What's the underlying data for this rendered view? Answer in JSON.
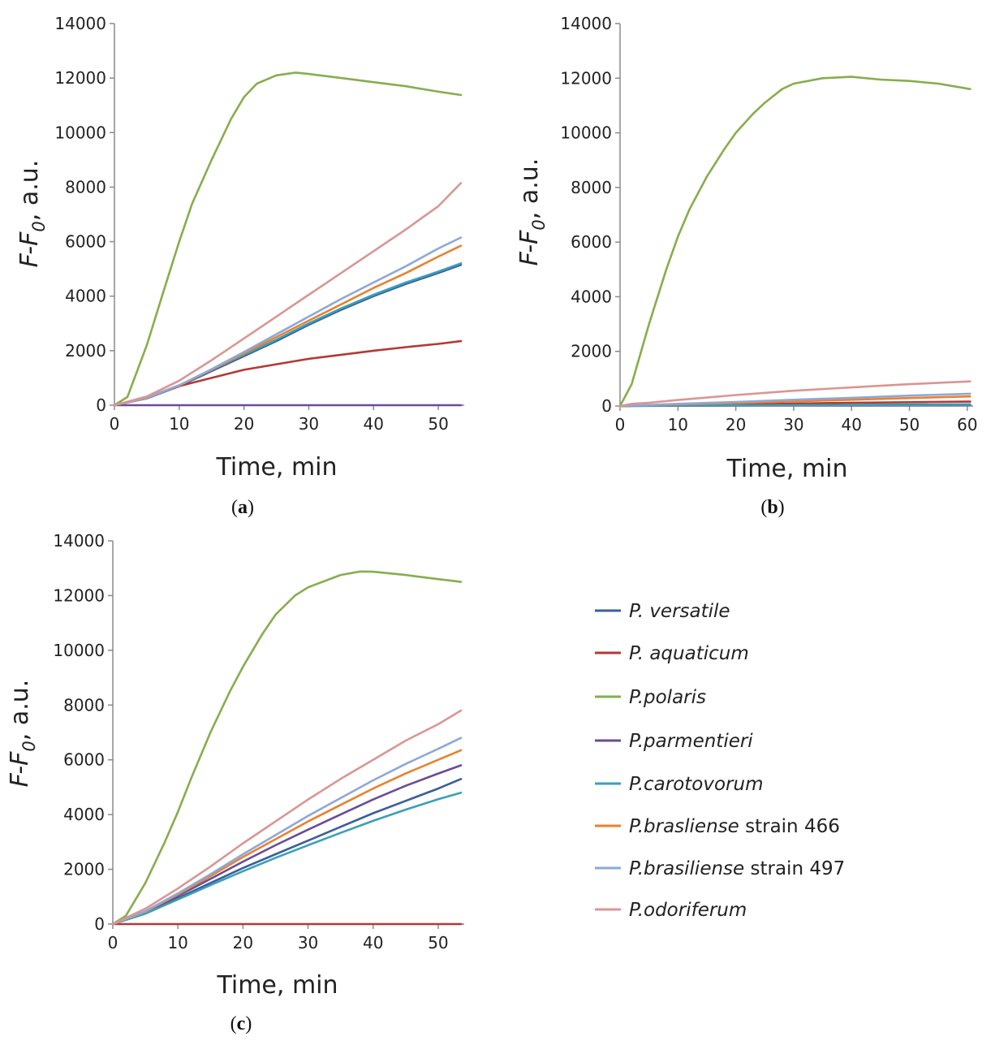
{
  "legend": [
    {
      "name_italic": "P. versatile",
      "suffix": "",
      "color": "#3a5f9a"
    },
    {
      "name_italic": "P. aquaticum",
      "suffix": "",
      "color": "#b23a36"
    },
    {
      "name_italic": "P.polaris",
      "suffix": "",
      "color": "#86ae4c"
    },
    {
      "name_italic": "P.parmentieri",
      "suffix": "",
      "color": "#6b4c96"
    },
    {
      "name_italic": "P.carotovorum",
      "suffix": "",
      "color": "#3aa0b8"
    },
    {
      "name_italic": "P.brasliense",
      "suffix": " strain 466",
      "color": "#e8822e"
    },
    {
      "name_italic": "P.brasiliense",
      "suffix": " strain 497",
      "color": "#8ea8d6"
    },
    {
      "name_italic": "P.odoriferum",
      "suffix": "",
      "color": "#d99694"
    }
  ],
  "axes": {
    "ylabel_main": "F-F",
    "ylabel_sub": "0",
    "ylabel_rest": ", a.u.",
    "xlabel": "Time, min"
  },
  "chart_data": [
    {
      "type": "line",
      "panel": "a",
      "panel_label": "a",
      "xlim": [
        0,
        54
      ],
      "ylim": [
        0,
        14000
      ],
      "xticks": [
        0,
        10,
        20,
        30,
        40,
        50
      ],
      "yticks": [
        0,
        2000,
        4000,
        6000,
        8000,
        10000,
        12000,
        14000
      ],
      "xlabel": "Time, min",
      "ylabel": "F-F0, a.u.",
      "series": [
        {
          "name": "P. versatile",
          "color": "#3a5f9a",
          "x": [
            0,
            5,
            10,
            15,
            20,
            25,
            30,
            35,
            40,
            45,
            50,
            53.5
          ],
          "y": [
            0,
            250,
            700,
            1250,
            1800,
            2350,
            2950,
            3500,
            4000,
            4450,
            4850,
            5150
          ]
        },
        {
          "name": "P. aquaticum",
          "color": "#b23a36",
          "x": [
            0,
            5,
            10,
            15,
            20,
            25,
            30,
            35,
            40,
            45,
            50,
            53.5
          ],
          "y": [
            0,
            280,
            700,
            1000,
            1300,
            1500,
            1700,
            1850,
            2000,
            2130,
            2250,
            2350
          ]
        },
        {
          "name": "P.polaris",
          "color": "#86ae4c",
          "x": [
            0,
            2,
            5,
            8,
            10,
            12,
            15,
            18,
            20,
            22,
            25,
            28,
            30,
            35,
            40,
            45,
            50,
            53.5
          ],
          "y": [
            0,
            300,
            2200,
            4500,
            6000,
            7400,
            9000,
            10500,
            11300,
            11800,
            12100,
            12200,
            12150,
            12000,
            11850,
            11700,
            11500,
            11380
          ]
        },
        {
          "name": "P.parmentieri",
          "color": "#6b4c96",
          "x": [
            0,
            53.5
          ],
          "y": [
            0,
            0
          ]
        },
        {
          "name": "P.carotovorum",
          "color": "#3aa0b8",
          "x": [
            0,
            5,
            10,
            15,
            20,
            25,
            30,
            35,
            40,
            45,
            50,
            53.5
          ],
          "y": [
            0,
            280,
            730,
            1300,
            1850,
            2400,
            3000,
            3550,
            4050,
            4500,
            4900,
            5200
          ]
        },
        {
          "name": "P.brasliense strain 466",
          "color": "#e8822e",
          "x": [
            0,
            5,
            10,
            15,
            20,
            25,
            30,
            35,
            40,
            45,
            50,
            53.5
          ],
          "y": [
            0,
            260,
            720,
            1300,
            1900,
            2500,
            3100,
            3700,
            4300,
            4850,
            5450,
            5850
          ]
        },
        {
          "name": "P.brasiliense strain 497",
          "color": "#8ea8d6",
          "x": [
            0,
            5,
            10,
            15,
            20,
            25,
            30,
            35,
            40,
            45,
            50,
            53.5
          ],
          "y": [
            0,
            270,
            730,
            1320,
            1950,
            2600,
            3250,
            3900,
            4500,
            5100,
            5750,
            6150
          ]
        },
        {
          "name": "P.odoriferum",
          "color": "#d99694",
          "x": [
            0,
            5,
            10,
            15,
            20,
            25,
            30,
            35,
            40,
            45,
            50,
            53.5
          ],
          "y": [
            0,
            320,
            900,
            1650,
            2450,
            3250,
            4050,
            4850,
            5650,
            6450,
            7300,
            8150
          ]
        }
      ]
    },
    {
      "type": "line",
      "panel": "b",
      "panel_label": "b",
      "xlim": [
        0,
        61
      ],
      "ylim": [
        0,
        14000
      ],
      "xticks": [
        0,
        10,
        20,
        30,
        40,
        50,
        60
      ],
      "yticks": [
        0,
        2000,
        4000,
        6000,
        8000,
        10000,
        12000,
        14000
      ],
      "xlabel": "Time, min",
      "ylabel": "F-F0, a.u.",
      "series": [
        {
          "name": "P. versatile",
          "color": "#3a5f9a",
          "x": [
            0,
            10,
            20,
            30,
            40,
            50,
            60.5
          ],
          "y": [
            0,
            20,
            30,
            40,
            45,
            50,
            55
          ]
        },
        {
          "name": "P. aquaticum",
          "color": "#b23a36",
          "x": [
            0,
            10,
            20,
            30,
            40,
            50,
            60.5
          ],
          "y": [
            0,
            30,
            60,
            90,
            120,
            140,
            160
          ]
        },
        {
          "name": "P.polaris",
          "color": "#86ae4c",
          "x": [
            0,
            2,
            5,
            8,
            10,
            12,
            15,
            18,
            20,
            23,
            25,
            28,
            30,
            35,
            40,
            45,
            50,
            55,
            60.5
          ],
          "y": [
            0,
            800,
            3000,
            5000,
            6200,
            7200,
            8400,
            9400,
            10000,
            10700,
            11100,
            11600,
            11800,
            12000,
            12050,
            11950,
            11900,
            11800,
            11600
          ]
        },
        {
          "name": "P.parmentieri",
          "color": "#6b4c96",
          "x": [
            0,
            10,
            20,
            30,
            40,
            50,
            60.5
          ],
          "y": [
            0,
            10,
            15,
            20,
            20,
            25,
            30
          ]
        },
        {
          "name": "P.carotovorum",
          "color": "#3aa0b8",
          "x": [
            0,
            10,
            20,
            30,
            40,
            50,
            60.5
          ],
          "y": [
            0,
            15,
            25,
            30,
            35,
            40,
            45
          ]
        },
        {
          "name": "P.brasliense strain 466",
          "color": "#e8822e",
          "x": [
            0,
            10,
            20,
            30,
            40,
            50,
            60.5
          ],
          "y": [
            0,
            60,
            110,
            170,
            230,
            290,
            350
          ]
        },
        {
          "name": "P.brasiliense strain 497",
          "color": "#8ea8d6",
          "x": [
            0,
            10,
            20,
            30,
            40,
            50,
            60.5
          ],
          "y": [
            0,
            80,
            150,
            230,
            300,
            380,
            450
          ]
        },
        {
          "name": "P.odoriferum",
          "color": "#d99694",
          "x": [
            0,
            2,
            5,
            10,
            20,
            30,
            40,
            50,
            60.5
          ],
          "y": [
            0,
            80,
            120,
            220,
            400,
            560,
            680,
            800,
            900
          ]
        }
      ]
    },
    {
      "type": "line",
      "panel": "c",
      "panel_label": "c",
      "xlim": [
        0,
        54
      ],
      "ylim": [
        0,
        14000
      ],
      "xticks": [
        0,
        10,
        20,
        30,
        40,
        50
      ],
      "yticks": [
        0,
        2000,
        4000,
        6000,
        8000,
        10000,
        12000,
        14000
      ],
      "xlabel": "Time, min",
      "ylabel": "F-F0, a.u.",
      "series": [
        {
          "name": "P. versatile",
          "color": "#3a5f9a",
          "x": [
            0,
            5,
            10,
            15,
            20,
            25,
            30,
            35,
            40,
            45,
            50,
            53.5
          ],
          "y": [
            0,
            400,
            950,
            1500,
            2050,
            2550,
            3050,
            3550,
            4050,
            4500,
            4950,
            5300
          ]
        },
        {
          "name": "P. aquaticum",
          "color": "#b23a36",
          "x": [
            0,
            53.5
          ],
          "y": [
            0,
            0
          ]
        },
        {
          "name": "P.polaris",
          "color": "#86ae4c",
          "x": [
            0,
            2,
            5,
            8,
            10,
            12,
            15,
            18,
            20,
            23,
            25,
            28,
            30,
            35,
            38,
            40,
            45,
            50,
            53.5
          ],
          "y": [
            0,
            300,
            1500,
            3000,
            4100,
            5300,
            7000,
            8500,
            9400,
            10600,
            11300,
            12000,
            12300,
            12750,
            12880,
            12870,
            12750,
            12600,
            12500
          ]
        },
        {
          "name": "P.parmentieri",
          "color": "#6b4c96",
          "x": [
            0,
            5,
            10,
            15,
            20,
            25,
            30,
            35,
            40,
            45,
            50,
            53.5
          ],
          "y": [
            0,
            430,
            1030,
            1650,
            2280,
            2880,
            3450,
            4000,
            4550,
            5050,
            5500,
            5800
          ]
        },
        {
          "name": "P.carotovorum",
          "color": "#3aa0b8",
          "x": [
            0,
            5,
            10,
            15,
            20,
            25,
            30,
            35,
            40,
            45,
            50,
            53.5
          ],
          "y": [
            0,
            380,
            900,
            1420,
            1930,
            2420,
            2880,
            3330,
            3770,
            4180,
            4560,
            4800
          ]
        },
        {
          "name": "P.brasliense strain 466",
          "color": "#e8822e",
          "x": [
            0,
            5,
            10,
            15,
            20,
            25,
            30,
            35,
            40,
            45,
            50,
            53.5
          ],
          "y": [
            0,
            450,
            1080,
            1750,
            2450,
            3100,
            3750,
            4350,
            4950,
            5500,
            6000,
            6350
          ]
        },
        {
          "name": "P.brasiliense strain 497",
          "color": "#8ea8d6",
          "x": [
            0,
            5,
            10,
            15,
            20,
            25,
            30,
            35,
            40,
            45,
            50,
            53.5
          ],
          "y": [
            0,
            470,
            1120,
            1820,
            2550,
            3250,
            3950,
            4600,
            5250,
            5850,
            6400,
            6800
          ]
        },
        {
          "name": "P.odoriferum",
          "color": "#d99694",
          "x": [
            0,
            5,
            10,
            15,
            20,
            25,
            30,
            35,
            40,
            45,
            50,
            53.5
          ],
          "y": [
            0,
            560,
            1300,
            2100,
            2950,
            3750,
            4550,
            5300,
            6000,
            6700,
            7300,
            7800
          ]
        }
      ]
    }
  ]
}
